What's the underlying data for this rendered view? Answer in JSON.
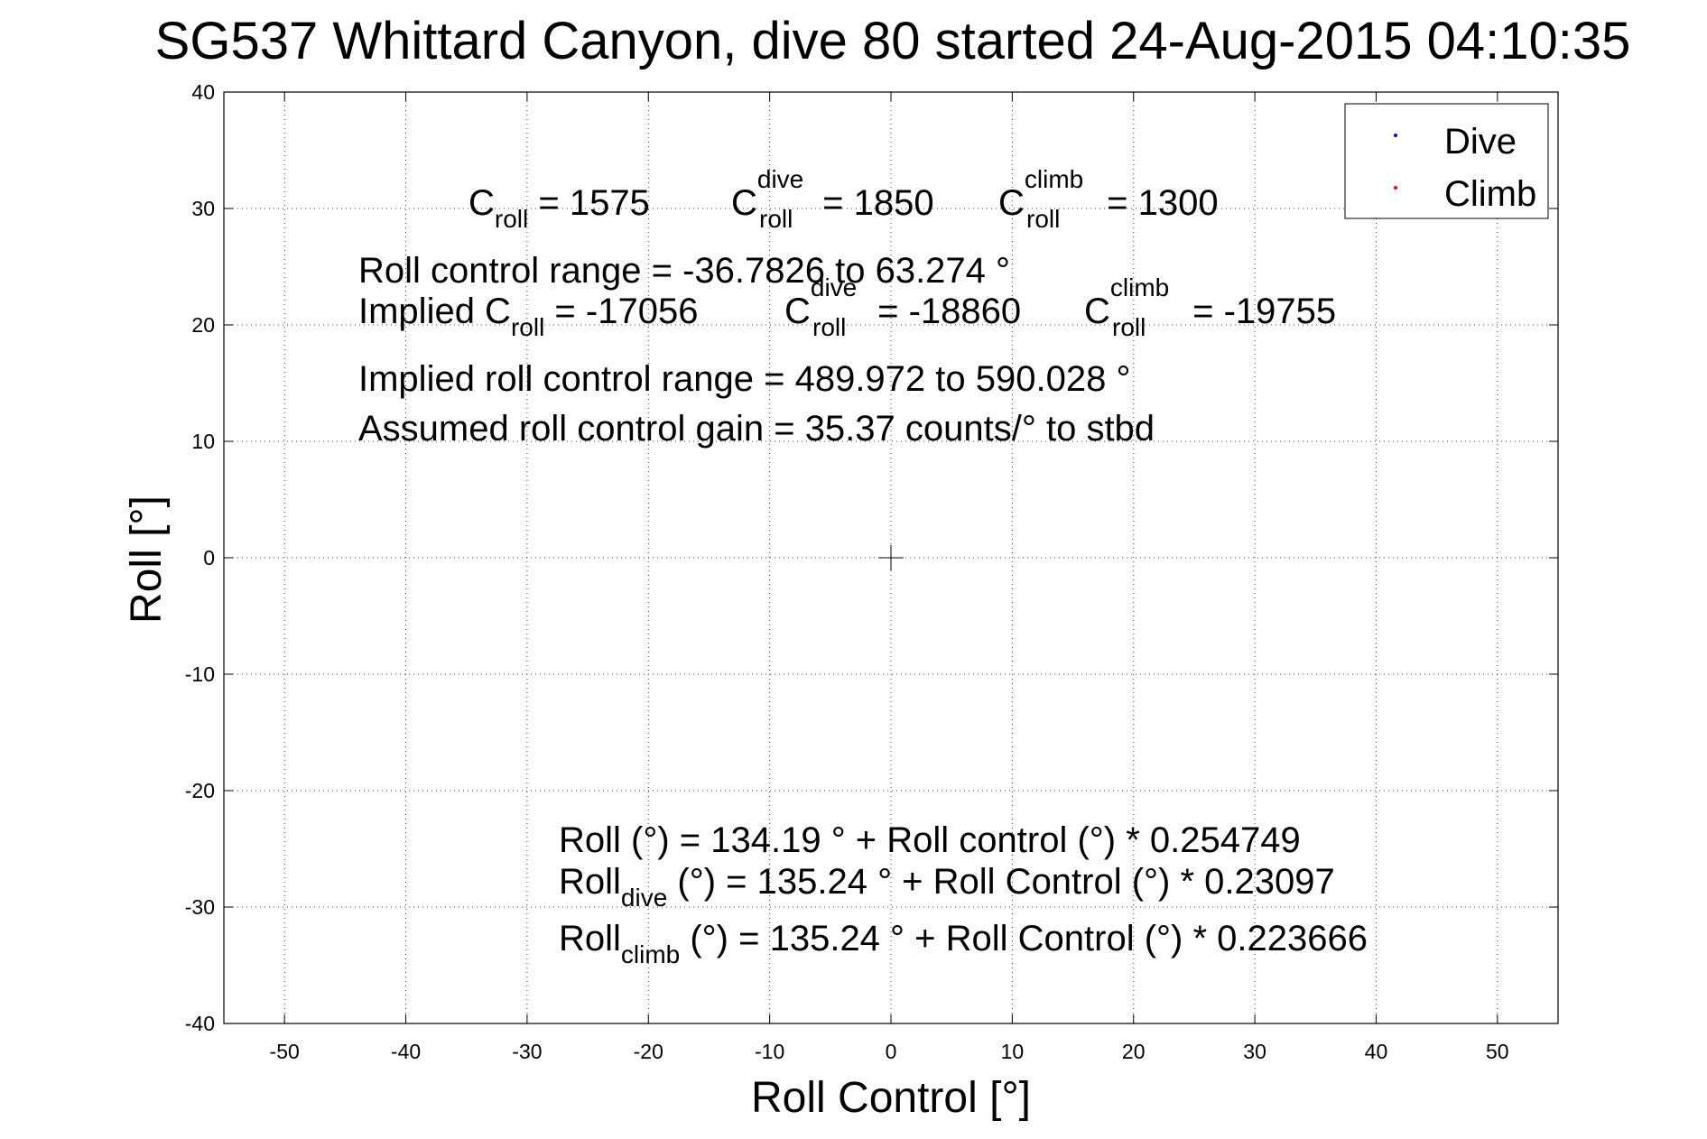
{
  "chart_data": {
    "type": "scatter",
    "title": "SG537 Whittard Canyon, dive 80 started 24-Aug-2015 04:10:35",
    "xlabel": "Roll Control [°]",
    "ylabel": "Roll [°]",
    "xlim": [
      -55,
      55
    ],
    "ylim": [
      -40,
      40
    ],
    "x_ticks": [
      -50,
      -40,
      -30,
      -20,
      -10,
      0,
      10,
      20,
      30,
      40,
      50
    ],
    "y_ticks": [
      -40,
      -30,
      -20,
      -10,
      0,
      10,
      20,
      30,
      40
    ],
    "grid": true,
    "grid_style": "dotted",
    "legend_position": "top-right",
    "series": [
      {
        "name": "Dive",
        "color": "#0000ff",
        "marker": "dot",
        "points": []
      },
      {
        "name": "Climb",
        "color": "#ff0000",
        "marker": "dot",
        "points": []
      }
    ],
    "center_marker": {
      "x": 0,
      "y": 0,
      "shape": "plus"
    },
    "annotations": {
      "c_roll": {
        "label": "C",
        "sub": "roll",
        "text": " = 1575"
      },
      "c_roll_dive": {
        "label": "C",
        "sup": "dive",
        "sub": "roll",
        "text": " = 1850"
      },
      "c_roll_climb": {
        "label": "C",
        "sup": "climb",
        "sub": "roll",
        "text": " = 1300"
      },
      "range": "Roll control range = -36.7826 to 63.274 °",
      "implied_prefix": "Implied C",
      "implied_sub": "roll",
      "implied_text": " = -17056",
      "implied_dive": {
        "label": "C",
        "sup": "dive",
        "sub": "roll",
        "text": " = -18860"
      },
      "implied_climb": {
        "label": "C",
        "sup": "climb",
        "sub": "roll",
        "text": " = -19755"
      },
      "implied_range": "Implied roll control range = 489.972 to 590.028 °",
      "gain": "Assumed roll control gain = 35.37 counts/° to stbd",
      "fit_all": "Roll (°) = 134.19 ° + Roll control (°) * 0.254749",
      "fit_dive_prefix": "Roll",
      "fit_dive_sub": "dive",
      "fit_dive_text": " (°) = 135.24 ° + Roll Control (°) * 0.23097",
      "fit_climb_prefix": "Roll",
      "fit_climb_sub": "climb",
      "fit_climb_text": " (°) = 135.24 ° + Roll Control (°) * 0.223666"
    }
  }
}
